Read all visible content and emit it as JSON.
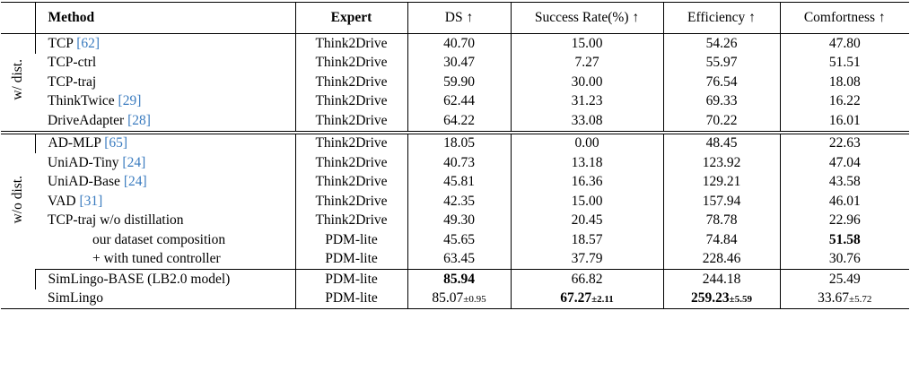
{
  "table": {
    "header": [
      "Method",
      "Expert",
      "DS ↑",
      "Success Rate(%) ↑",
      "Efficiency ↑",
      "Comfortness ↑"
    ],
    "groups": [
      {
        "label": "w/ dist.",
        "rows": [
          {
            "method": {
              "name": "TCP",
              "ref": "[62]"
            },
            "expert": "Think2Drive",
            "cells": [
              "40.70",
              "15.00",
              "54.26",
              "47.80"
            ]
          },
          {
            "method": {
              "name": "TCP-ctrl"
            },
            "expert": "Think2Drive",
            "cells": [
              "30.47",
              "7.27",
              "55.97",
              "51.51"
            ]
          },
          {
            "method": {
              "name": "TCP-traj"
            },
            "expert": "Think2Drive",
            "cells": [
              "59.90",
              "30.00",
              "76.54",
              "18.08"
            ]
          },
          {
            "method": {
              "name": "ThinkTwice",
              "ref": "[29]"
            },
            "expert": "Think2Drive",
            "cells": [
              "62.44",
              "31.23",
              "69.33",
              "16.22"
            ]
          },
          {
            "method": {
              "name": "DriveAdapter",
              "ref": "[28]"
            },
            "expert": "Think2Drive",
            "cells": [
              "64.22",
              "33.08",
              "70.22",
              "16.01"
            ]
          }
        ]
      },
      {
        "label": "w/o dist.",
        "rows": [
          {
            "method": {
              "name": "AD-MLP",
              "ref": "[65]"
            },
            "expert": "Think2Drive",
            "cells": [
              "18.05",
              "0.00",
              "48.45",
              "22.63"
            ]
          },
          {
            "method": {
              "name": "UniAD-Tiny",
              "ref": "[24]"
            },
            "expert": "Think2Drive",
            "cells": [
              "40.73",
              "13.18",
              "123.92",
              "47.04"
            ]
          },
          {
            "method": {
              "name": "UniAD-Base",
              "ref": "[24]"
            },
            "expert": "Think2Drive",
            "cells": [
              "45.81",
              "16.36",
              "129.21",
              "43.58"
            ]
          },
          {
            "method": {
              "name": "VAD",
              "ref": "[31]"
            },
            "expert": "Think2Drive",
            "cells": [
              "42.35",
              "15.00",
              "157.94",
              "46.01"
            ]
          },
          {
            "method": {
              "name": "TCP-traj w/o distillation"
            },
            "expert": "Think2Drive",
            "cells": [
              "49.30",
              "20.45",
              "78.78",
              "22.96"
            ]
          },
          {
            "method": {
              "name": "our dataset composition",
              "indent": true
            },
            "expert": "PDM-lite",
            "cells": [
              "45.65",
              "18.57",
              "74.84",
              {
                "text": "51.58",
                "bold": true
              }
            ]
          },
          {
            "method": {
              "name": "+ with tuned controller",
              "indent": true
            },
            "expert": "PDM-lite",
            "cells": [
              "63.45",
              "37.79",
              "228.46",
              "30.76"
            ]
          }
        ]
      },
      {
        "rows": [
          {
            "method": {
              "name": "SimLingo-BASE (LB2.0 model)"
            },
            "expert": "PDM-lite",
            "cells": [
              {
                "text": "85.94",
                "bold": true
              },
              "66.82",
              "244.18",
              "25.49"
            ]
          },
          {
            "method": {
              "name": "SimLingo"
            },
            "expert": "PDM-lite",
            "cells": [
              {
                "text": "85.07",
                "pm": "±0.95"
              },
              {
                "text": "67.27",
                "pm": "±2.11",
                "bold": true
              },
              {
                "text": "259.23",
                "pm": "±5.59",
                "bold": true
              },
              {
                "text": "33.67",
                "pm": "±5.72"
              }
            ]
          }
        ]
      }
    ]
  }
}
